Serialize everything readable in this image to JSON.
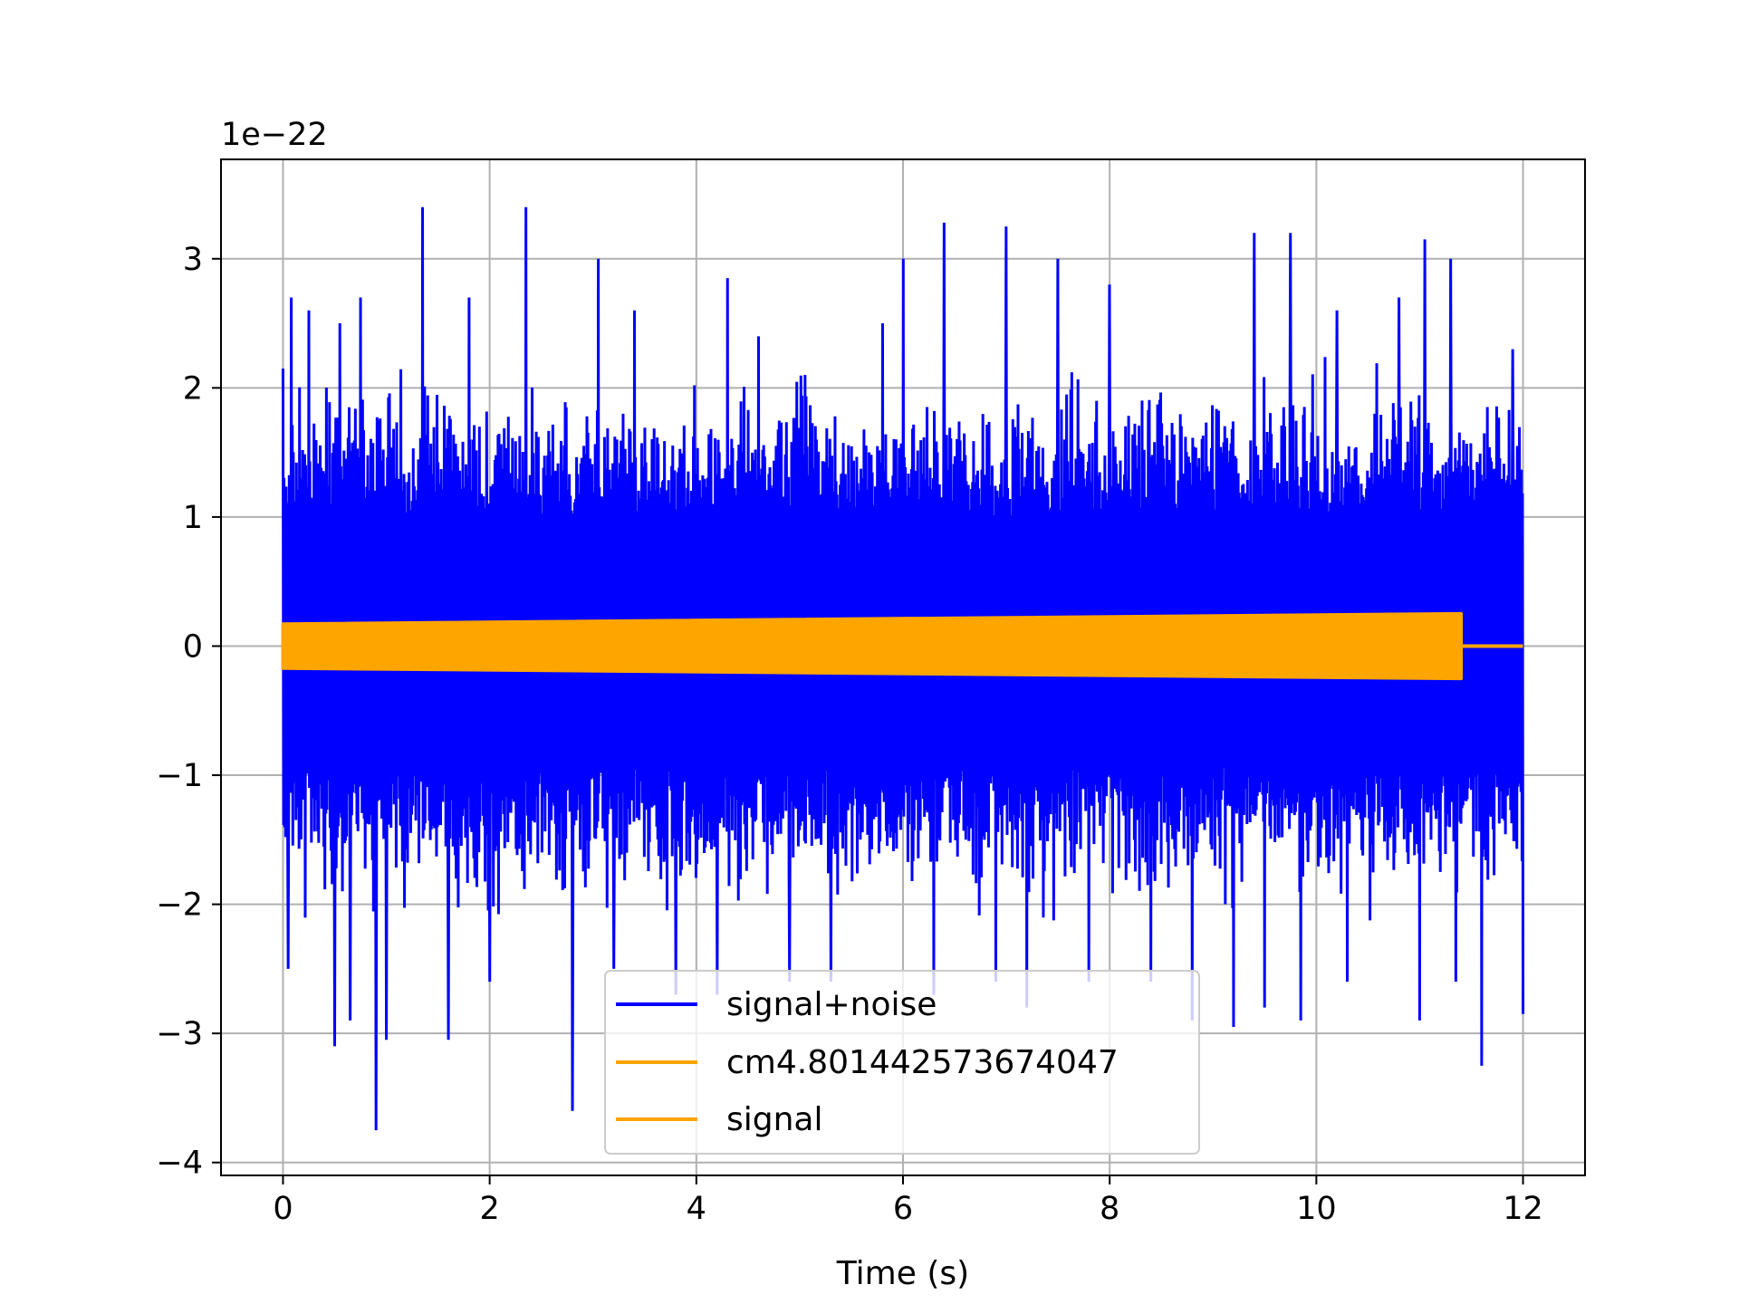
{
  "chart_data": {
    "type": "line",
    "title": "",
    "xlabel": "Time (s)",
    "ylabel": "",
    "y_offset_label": "1e−22",
    "y_scale_exponent": -22,
    "xlim": [
      -0.6,
      12.6
    ],
    "ylim": [
      -4.1,
      3.77
    ],
    "x_ticks": [
      0,
      2,
      4,
      6,
      8,
      10,
      12
    ],
    "x_tick_labels": [
      "0",
      "2",
      "4",
      "6",
      "8",
      "10",
      "12"
    ],
    "y_ticks": [
      -4,
      -3,
      -2,
      -1,
      0,
      1,
      2,
      3
    ],
    "y_tick_labels": [
      "−4",
      "−3",
      "−2",
      "−1",
      "0",
      "1",
      "2",
      "3"
    ],
    "grid": true,
    "legend_position": "lower center",
    "colors": {
      "signal_noise": "#0000ff",
      "signal": "#ffa500",
      "grid": "#b0b0b0"
    },
    "series": [
      {
        "name": "signal+noise",
        "color": "#0000ff",
        "x_range": [
          0,
          12
        ],
        "typical_envelope": [
          -1.7,
          1.8
        ],
        "peaks": [
          {
            "x": 0.0,
            "y": 2.15
          },
          {
            "x": 0.08,
            "y": 2.7
          },
          {
            "x": 0.25,
            "y": 2.6
          },
          {
            "x": 0.55,
            "y": 2.5
          },
          {
            "x": 0.75,
            "y": 2.7
          },
          {
            "x": 1.0,
            "y": 2.5
          },
          {
            "x": 1.35,
            "y": 3.4
          },
          {
            "x": 1.8,
            "y": 2.7
          },
          {
            "x": 2.35,
            "y": 3.4
          },
          {
            "x": 2.8,
            "y": 2.5
          },
          {
            "x": 3.05,
            "y": 3.0
          },
          {
            "x": 3.4,
            "y": 2.6
          },
          {
            "x": 3.8,
            "y": 2.8
          },
          {
            "x": 4.3,
            "y": 2.85
          },
          {
            "x": 4.6,
            "y": 2.4
          },
          {
            "x": 5.3,
            "y": 2.85
          },
          {
            "x": 5.8,
            "y": 2.5
          },
          {
            "x": 6.0,
            "y": 3.0
          },
          {
            "x": 6.4,
            "y": 3.28
          },
          {
            "x": 7.0,
            "y": 3.25
          },
          {
            "x": 7.5,
            "y": 3.0
          },
          {
            "x": 8.0,
            "y": 2.8
          },
          {
            "x": 8.4,
            "y": 2.3
          },
          {
            "x": 8.8,
            "y": 2.75
          },
          {
            "x": 9.2,
            "y": 3.2
          },
          {
            "x": 9.4,
            "y": 3.2
          },
          {
            "x": 9.75,
            "y": 3.2
          },
          {
            "x": 10.2,
            "y": 2.6
          },
          {
            "x": 10.8,
            "y": 2.7
          },
          {
            "x": 11.05,
            "y": 3.15
          },
          {
            "x": 11.3,
            "y": 3.0
          },
          {
            "x": 11.6,
            "y": 2.7
          },
          {
            "x": 11.9,
            "y": 2.3
          }
        ],
        "troughs": [
          {
            "x": 0.05,
            "y": -2.5
          },
          {
            "x": 0.5,
            "y": -3.1
          },
          {
            "x": 0.65,
            "y": -2.9
          },
          {
            "x": 0.9,
            "y": -3.75
          },
          {
            "x": 1.0,
            "y": -3.05
          },
          {
            "x": 1.6,
            "y": -3.05
          },
          {
            "x": 2.0,
            "y": -2.6
          },
          {
            "x": 2.8,
            "y": -3.6
          },
          {
            "x": 3.2,
            "y": -2.5
          },
          {
            "x": 3.8,
            "y": -2.7
          },
          {
            "x": 4.2,
            "y": -2.7
          },
          {
            "x": 4.9,
            "y": -2.6
          },
          {
            "x": 5.3,
            "y": -2.6
          },
          {
            "x": 6.3,
            "y": -2.7
          },
          {
            "x": 6.9,
            "y": -2.6
          },
          {
            "x": 7.2,
            "y": -2.8
          },
          {
            "x": 7.8,
            "y": -2.6
          },
          {
            "x": 8.4,
            "y": -2.6
          },
          {
            "x": 8.8,
            "y": -2.9
          },
          {
            "x": 9.2,
            "y": -2.95
          },
          {
            "x": 9.5,
            "y": -2.8
          },
          {
            "x": 9.85,
            "y": -2.9
          },
          {
            "x": 10.3,
            "y": -2.6
          },
          {
            "x": 11.0,
            "y": -2.9
          },
          {
            "x": 11.35,
            "y": -2.6
          },
          {
            "x": 11.6,
            "y": -3.25
          },
          {
            "x": 12.0,
            "y": -2.85
          }
        ]
      },
      {
        "name": "cm4.801442573674047",
        "color": "#ffa500",
        "x_range": [
          0,
          11.4
        ],
        "amplitude_start": 0.17,
        "amplitude_end": 0.25
      },
      {
        "name": "signal",
        "color": "#ffa500",
        "x_range": [
          0,
          12
        ],
        "amplitude_start": 0.17,
        "amplitude_end": 0.25,
        "chirp_end": 11.4
      }
    ]
  }
}
